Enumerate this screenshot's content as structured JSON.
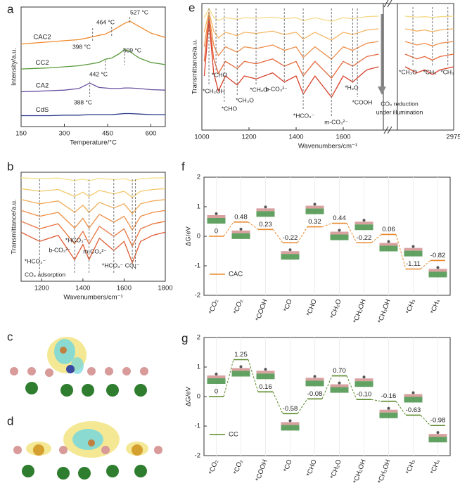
{
  "chart_data": [
    {
      "label": "a",
      "type": "line",
      "xlabel": "Temperature/°C",
      "ylabel": "Intensity/a.u.",
      "x": [
        150,
        200,
        250,
        300,
        350,
        388,
        420,
        442,
        464,
        490,
        509,
        527,
        560,
        600,
        650
      ],
      "series": [
        {
          "name": "CAC2",
          "color": "#ef8a2c",
          "values": [
            7.6,
            7.7,
            7.8,
            7.9,
            8.0,
            8.2,
            8.4,
            8.5,
            8.8,
            9.2,
            9.5,
            9.7,
            9.2,
            8.6,
            8.2
          ]
        },
        {
          "name": "CC2",
          "color": "#5a9a3a",
          "values": [
            5.3,
            5.35,
            5.4,
            5.5,
            5.6,
            5.75,
            5.9,
            6.2,
            6.3,
            6.7,
            7.1,
            6.9,
            6.3,
            5.9,
            5.7
          ]
        },
        {
          "name": "CA2",
          "color": "#6a4fa0",
          "values": [
            3.2,
            3.25,
            3.3,
            3.35,
            3.5,
            4.0,
            3.6,
            3.55,
            3.5,
            3.5,
            3.55,
            3.55,
            3.5,
            3.4,
            3.35
          ]
        },
        {
          "name": "CdS",
          "color": "#2a3a8a",
          "values": [
            1.0,
            1.0,
            1.0,
            1.05,
            1.05,
            1.1,
            1.1,
            1.1,
            1.1,
            1.15,
            1.2,
            1.2,
            1.15,
            1.1,
            1.1
          ]
        }
      ],
      "xlim": [
        150,
        650
      ],
      "xticks": [
        150,
        300,
        450,
        600
      ],
      "ylim": [
        0,
        11
      ],
      "annotations": [
        {
          "text": "527 °C",
          "x": 527
        },
        {
          "text": "464 °C",
          "x": 464
        },
        {
          "text": "398 °C",
          "x": 398
        },
        {
          "text": "509 °C",
          "x": 509
        },
        {
          "text": "442 °C",
          "x": 442
        },
        {
          "text": "388 °C",
          "x": 388
        }
      ]
    },
    {
      "label": "b",
      "type": "line",
      "xlabel": "Wavenumbers/cm⁻¹",
      "ylabel": "Transmittance/a.u.",
      "note": "CO₂ adsorption",
      "x": [
        1100,
        1190,
        1280,
        1360,
        1400,
        1430,
        1480,
        1550,
        1600,
        1640,
        1680,
        1740,
        1800
      ],
      "series": [
        {
          "color": "#f7e08a",
          "values": [
            9.5,
            9.41,
            9.47,
            9.23,
            9.38,
            9.23,
            9.44,
            9.32,
            9.41,
            9.2,
            9.41,
            9.47,
            9.5
          ]
        },
        {
          "color": "#f5c86a",
          "values": [
            8.5,
            8.26,
            8.42,
            7.78,
            8.18,
            7.78,
            8.34,
            8.02,
            8.26,
            7.7,
            8.26,
            8.42,
            8.5
          ]
        },
        {
          "color": "#f2ab55",
          "values": [
            7.5,
            7.11,
            7.37,
            6.33,
            6.98,
            6.33,
            7.24,
            6.72,
            7.11,
            6.2,
            7.11,
            7.37,
            7.5
          ]
        },
        {
          "color": "#ee9048",
          "values": [
            6.5,
            5.96,
            6.32,
            4.88,
            5.78,
            4.88,
            6.14,
            5.42,
            5.96,
            4.7,
            5.96,
            6.32,
            6.5
          ]
        },
        {
          "color": "#e8743c",
          "values": [
            5.5,
            4.81,
            5.27,
            3.43,
            4.58,
            3.43,
            5.04,
            4.12,
            4.81,
            3.2,
            4.81,
            5.27,
            5.5
          ]
        },
        {
          "color": "#e05a30",
          "values": [
            4.5,
            3.66,
            4.22,
            1.98,
            3.38,
            1.98,
            3.94,
            2.82,
            3.66,
            1.7,
            3.66,
            4.22,
            4.5
          ]
        }
      ],
      "xlim": [
        1100,
        1800
      ],
      "xticks": [
        1200,
        1400,
        1600,
        1800
      ],
      "ylim": [
        0,
        10
      ],
      "annotations": [
        {
          "text": "*HCO₃⁻",
          "x": 1190
        },
        {
          "text": "b-CO₃²⁻",
          "x": 1360
        },
        {
          "text": "*HCO₃⁻",
          "x": 1430
        },
        {
          "text": "m-CO₃²⁻",
          "x": 1550
        },
        {
          "text": "*HCO₃⁻",
          "x": 1640
        },
        {
          "text": "CO₂⁻",
          "x": 1655
        }
      ]
    },
    {
      "label": "c",
      "type": "image"
    },
    {
      "label": "d",
      "type": "image"
    },
    {
      "label": "e",
      "type": "line",
      "xlabel": "Wavenumbers/cm⁻¹",
      "ylabel": "Transmittance/a.u.",
      "note": [
        "CO₂ reduction",
        "under illumination"
      ],
      "x": [
        1010,
        1030,
        1050,
        1070,
        1100,
        1150,
        1180,
        1230,
        1300,
        1350,
        1400,
        1430,
        1480,
        1550,
        1600,
        1640,
        1700,
        1750,
        2850,
        2880,
        2900,
        2920,
        2940,
        2975
      ],
      "series": [
        {
          "color": "#f6d98a",
          "values": [
            8.88,
            9.6,
            8.92,
            8.68,
            8.88,
            8.76,
            8.88,
            8.84,
            8.92,
            8.8,
            8.88,
            8.64,
            8.88,
            8.6,
            8.88,
            8.8,
            8.96,
            9,
            9,
            8.92,
            8.96,
            8.9,
            8.96,
            9
          ]
        },
        {
          "color": "#f3b566",
          "values": [
            7.73,
            9.35,
            7.82,
            7.28,
            7.73,
            7.46,
            7.73,
            7.64,
            7.82,
            7.55,
            7.73,
            7.19,
            7.73,
            7.1,
            7.73,
            7.55,
            7.91,
            8,
            8,
            7.82,
            7.91,
            7.78,
            7.91,
            8
          ]
        },
        {
          "color": "#ee8f4c",
          "values": [
            6.58,
            9.1,
            6.72,
            5.88,
            6.58,
            6.16,
            6.58,
            6.44,
            6.72,
            6.3,
            6.58,
            5.74,
            6.58,
            5.6,
            6.58,
            6.3,
            6.86,
            7,
            7,
            6.72,
            6.86,
            6.65,
            6.86,
            7
          ]
        },
        {
          "color": "#e5683a",
          "values": [
            5.43,
            8.85,
            5.62,
            4.48,
            5.43,
            4.86,
            5.43,
            5.24,
            5.62,
            5.05,
            5.43,
            4.29,
            5.43,
            4.1,
            5.43,
            5.05,
            5.81,
            6,
            6,
            5.62,
            5.81,
            5.53,
            5.81,
            6
          ]
        },
        {
          "color": "#d8402a",
          "values": [
            4.28,
            8.6,
            4.52,
            3.08,
            4.28,
            3.56,
            4.28,
            4.04,
            4.52,
            3.8,
            4.28,
            2.84,
            4.28,
            2.6,
            4.28,
            3.8,
            4.76,
            5,
            5,
            4.52,
            4.76,
            4.4,
            4.76,
            5
          ]
        }
      ],
      "xlim": [
        1000,
        2975
      ],
      "xbreak": [
        1770,
        2830
      ],
      "xticks": [
        1000,
        1200,
        1400,
        1600,
        2975
      ],
      "ylim": [
        0,
        10
      ],
      "annotations": [
        {
          "text": "*CHO",
          "x": 1060
        },
        {
          "text": "*CH₂OH",
          "x": 1030
        },
        {
          "text": "*CHO",
          "x": 1095
        },
        {
          "text": "*CH₃O",
          "x": 1150
        },
        {
          "text": "*CH₂O",
          "x": 1230
        },
        {
          "text": "b-CO₃²⁻",
          "x": 1350
        },
        {
          "text": "*HCO₃⁻",
          "x": 1430
        },
        {
          "text": "m-CO₃²⁻",
          "x": 1550
        },
        {
          "text": "*H₂O",
          "x": 1640
        },
        {
          "text": "*COOH",
          "x": 1660
        },
        {
          "text": "*CH₃O",
          "x": 2870
        },
        {
          "text": "*CH₂",
          "x": 2920
        },
        {
          "text": "*CH₃",
          "x": 2960
        }
      ]
    },
    {
      "label": "f",
      "type": "energy",
      "ylabel": "ΔG/eV",
      "legend": "lower left",
      "categories": [
        "*CO₂",
        "*CO₂",
        "*COOH",
        "*CO",
        "*CHO",
        "*CH₂O",
        "*CH₂OH",
        "*CH₃OH",
        "*CH₃",
        "*CH₄"
      ],
      "series": [
        {
          "name": "CAC",
          "color": "#e8892b",
          "values": [
            0,
            0.48,
            0.23,
            -0.22,
            0.32,
            0.44,
            -0.22,
            0.06,
            -1.11,
            -0.82
          ],
          "value_labels": [
            "0",
            "0.48",
            "0.23",
            "-0.22",
            "0.32",
            "0.44",
            "-0.22",
            "0.06",
            "-1.11",
            "-0.82"
          ]
        }
      ],
      "ylim": [
        -2,
        2
      ],
      "yticks": [
        -2,
        -1,
        0,
        1,
        2
      ]
    },
    {
      "label": "g",
      "type": "energy",
      "ylabel": "ΔG/eV",
      "legend": "lower left",
      "categories": [
        "*CO₂",
        "*CO₂",
        "*COOH",
        "*CO",
        "*CHO",
        "*CH₂O",
        "*CH₂OH",
        "*CH₃OH",
        "*CH₃",
        "*CH₄"
      ],
      "series": [
        {
          "name": "CC",
          "color": "#5a8a2a",
          "values": [
            0,
            1.25,
            0.16,
            -0.58,
            -0.08,
            0.7,
            -0.1,
            -0.16,
            -0.63,
            -0.98
          ],
          "value_labels": [
            "0",
            "1.25",
            "0.16",
            "-0.58",
            "-0.08",
            "0.70",
            "-0.10",
            "-0.16",
            "-0.63",
            "-0.98"
          ]
        }
      ],
      "ylim": [
        -2,
        2
      ],
      "yticks": [
        -2,
        -1,
        0,
        1,
        2
      ]
    }
  ]
}
